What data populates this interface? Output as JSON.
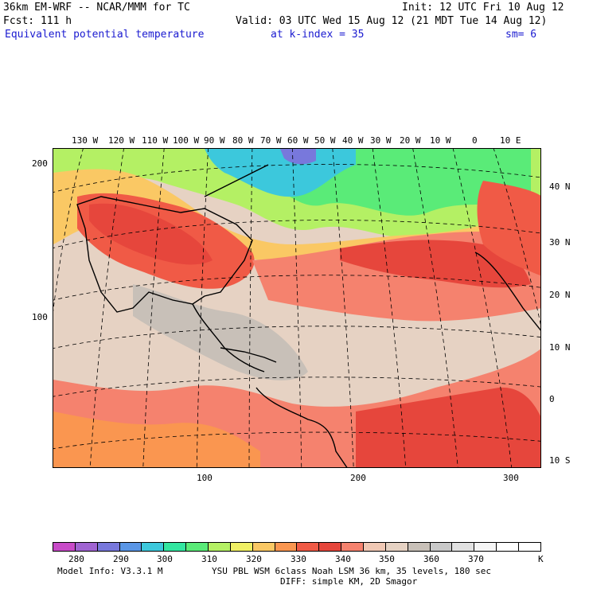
{
  "header": {
    "model_line": "36km EM-WRF -- NCAR/MMM for TC",
    "init": "Init: 12 UTC Fri 10 Aug 12",
    "fcst": "Fcst:  111 h",
    "valid": "Valid: 03 UTC Wed 15 Aug 12 (21 MDT Tue 14 Aug 12)",
    "field": "Equivalent potential temperature",
    "level": "at k-index =  35",
    "smoothing": "sm= 6"
  },
  "map": {
    "longitude_labels": [
      "130 W",
      "120 W",
      "110 W",
      "100 W",
      "90 W",
      "80 W",
      "70 W",
      "60 W",
      "50 W",
      "40 W",
      "30 W",
      "20 W",
      "10 W",
      "0",
      "10 E"
    ],
    "latitude_labels": [
      "40 N",
      "30 N",
      "20 N",
      "10 N",
      "0",
      "10 S"
    ],
    "grid_y_labels": [
      "200",
      "100"
    ],
    "grid_x_labels": [
      "100",
      "200",
      "300"
    ]
  },
  "colorbar": {
    "colors": [
      "#c84bc8",
      "#a064d2",
      "#7878dc",
      "#5a96e6",
      "#3cc8dc",
      "#32e6a0",
      "#5aeb78",
      "#b4f064",
      "#f0f064",
      "#fac864",
      "#fa9650",
      "#f05a46",
      "#e6463c",
      "#f5826e",
      "#f0c8b4",
      "#e6d2c3",
      "#c8c0b8",
      "#c8c8c8",
      "#e1e1e1",
      "#f5f5f5",
      "#ffffff",
      "#ffffff"
    ],
    "tick_labels": [
      "280",
      "290",
      "300",
      "310",
      "320",
      "330",
      "340",
      "350",
      "360",
      "370"
    ],
    "unit": "K"
  },
  "footer": {
    "model_info": "Model Info: V3.3.1 M",
    "physics": "YSU PBL  WSM 6class  Noah LSM  36 km,   35 levels,  180 sec",
    "diffusion": "DIFF: simple KM, 2D Smagor"
  }
}
